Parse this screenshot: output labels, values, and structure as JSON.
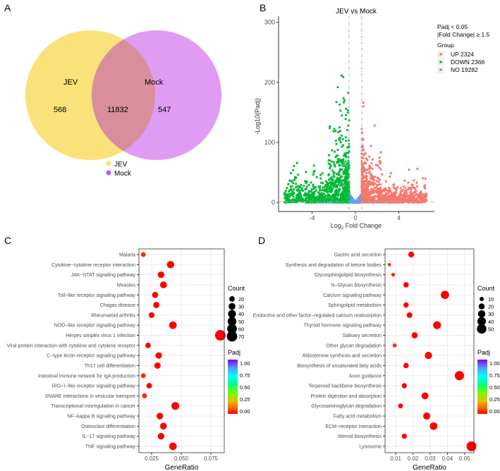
{
  "panels": {
    "a": "A",
    "b": "B",
    "c": "C",
    "d": "D"
  },
  "chart_data": [
    {
      "type": "venn",
      "sets": [
        {
          "name": "JEV",
          "unique": 568,
          "color": "#F9E27A"
        },
        {
          "name": "Mock",
          "unique": 547,
          "color": "#D98BF0"
        }
      ],
      "intersection": 11832,
      "legend": [
        "JEV",
        "Mock"
      ],
      "unique_labels": [
        "568",
        "547"
      ],
      "intersection_label": "11832"
    },
    {
      "type": "scatter",
      "title": "JEV vs Mock",
      "xlabel_main": "Log",
      "xlabel_sub": "2",
      "xlabel_rest": " Fold Change",
      "ylabel": "-Log10(Padj)",
      "xlim": [
        -7.1,
        7.3
      ],
      "ylim": [
        -15,
        310
      ],
      "xticks": [
        -4,
        0,
        4
      ],
      "yticks": [
        0,
        100,
        200,
        300
      ],
      "thresholds": {
        "log2fc": [
          -0.585,
          0.585
        ],
        "padj": 0.05
      },
      "legend_note": [
        "Padj < 0.05",
        "|Fold Change| ≥ 1.5"
      ],
      "legend_title": "Group",
      "series": [
        {
          "name": "UP 2324",
          "group": "UP",
          "count": 2324,
          "color": "#F8766D"
        },
        {
          "name": "DOWN 2366",
          "group": "DOWN",
          "count": 2366,
          "color": "#00BA38"
        },
        {
          "name": "NO 19282",
          "group": "NO",
          "count": 19282,
          "color": "#619CFF"
        }
      ]
    },
    {
      "type": "scatter",
      "xlabel": "GeneRatio",
      "xlim": [
        0.0143,
        0.0863
      ],
      "xticks": [
        0.025,
        0.05,
        0.075
      ],
      "xtick_labels": [
        "0.025",
        "0.050",
        "0.075"
      ],
      "size_legend_title": "Count",
      "size_legend": [
        20,
        30,
        40,
        50,
        60,
        70
      ],
      "color_legend_title": "Padj",
      "color_legend": [
        "1.00",
        "0.75",
        "0.50",
        "0.25",
        "0.00"
      ],
      "categories": [
        "Malaria",
        "Cytokine−cytokine receptor interaction",
        "JAK−STAT signaling pathway",
        "Measles",
        "Toll−like receptor signaling pathway",
        "Chagas disease",
        "Rheumatoid arthritis",
        "NOD−like receptor signaling pathway",
        "Herpes simplex virus 1 infection",
        "Viral protein interaction with cytokine and cytokine receptor",
        "C−type lectin receptor signaling pathway",
        "Th17 cell differentiation",
        "Intestinal immune network for IgA production",
        "RIG−I−like receptor signaling pathway",
        "SNARE interactions in vesicular transport",
        "Transcriptional misregulation in cancer",
        "NF−kappa B signaling pathway",
        "Osteoclast differentiation",
        "IL−17 signaling pathway",
        "TNF signaling pathway"
      ],
      "gene_ratio": [
        0.018,
        0.041,
        0.033,
        0.035,
        0.028,
        0.029,
        0.025,
        0.043,
        0.083,
        0.022,
        0.031,
        0.03,
        0.018,
        0.023,
        0.019,
        0.045,
        0.032,
        0.035,
        0.033,
        0.043
      ],
      "count": [
        15,
        35,
        28,
        30,
        24,
        25,
        21,
        37,
        72,
        19,
        27,
        26,
        15,
        20,
        16,
        39,
        28,
        30,
        28,
        37
      ],
      "padj": [
        0.01,
        0,
        0,
        0,
        0,
        0,
        0,
        0,
        0,
        0,
        0,
        0,
        0.01,
        0,
        0.01,
        0,
        0,
        0,
        0,
        0
      ]
    },
    {
      "type": "scatter",
      "xlabel": "GeneRatio",
      "xlim": [
        0.0038,
        0.0554
      ],
      "xticks": [
        0.01,
        0.02,
        0.03,
        0.04,
        0.05
      ],
      "xtick_labels": [
        "0.01",
        "0.02",
        "0.03",
        "0.04",
        "0.05"
      ],
      "size_legend_title": "Count",
      "size_legend": [
        10,
        20,
        30,
        40,
        50
      ],
      "color_legend_title": "Padj",
      "color_legend": [
        "1.00",
        "0.75",
        "0.50",
        "0.25",
        "0.00"
      ],
      "categories": [
        "Gastric acid secretion",
        "Synthesis and degradation of ketone bodies",
        "Glycosphingolipid biosynthesis",
        "N−Glycan biosynthesis",
        "Calcium signaling pathway",
        "Sphingolipid metabolism",
        "Endocrine and other factor−regulated calcium reabsorption",
        "Thyroid hormone signaling pathway",
        "Salivary secretion",
        "Other glycan degradation",
        "Aldosterone synthesis and secretion",
        "Biosynthesis of unsaturated fatty acids",
        "Axon guidance",
        "Terpenoid backbone biosynthesis",
        "Protein digestion and absorption",
        "Glycosaminoglycan degradation",
        "Fatty acid metabolism",
        "ECM−receptor interaction",
        "Steroid biosynthesis",
        "Lysosome"
      ],
      "gene_ratio": [
        0.019,
        0.0063,
        0.0085,
        0.016,
        0.0386,
        0.016,
        0.018,
        0.034,
        0.021,
        0.0094,
        0.029,
        0.016,
        0.047,
        0.015,
        0.027,
        0.0128,
        0.028,
        0.032,
        0.015,
        0.054
      ],
      "count": [
        19,
        6,
        8,
        16,
        38,
        16,
        18,
        34,
        21,
        9,
        29,
        16,
        47,
        15,
        27,
        13,
        28,
        32,
        15,
        54
      ],
      "padj": [
        0,
        0.02,
        0.01,
        0,
        0,
        0,
        0,
        0,
        0,
        0.01,
        0,
        0,
        0,
        0,
        0,
        0,
        0,
        0,
        0,
        0
      ]
    }
  ]
}
